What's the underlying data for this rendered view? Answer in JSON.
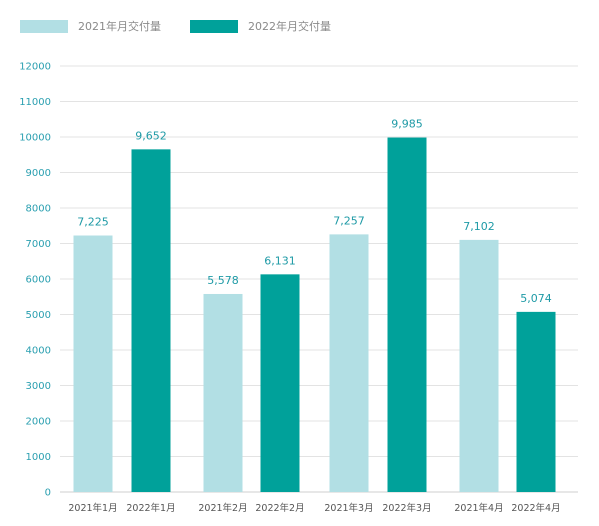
{
  "colors": {
    "series_2021": "#b2dfe4",
    "series_2022": "#00a19a",
    "grid": "#e3e3e3",
    "axis": "#cfcfcf"
  },
  "chart_data": {
    "type": "bar",
    "title": "",
    "xlabel": "",
    "ylabel": "",
    "ylim": [
      0,
      12000
    ],
    "yticks": [
      "0",
      "1000",
      "2000",
      "3000",
      "4000",
      "5000",
      "6000",
      "7000",
      "8000",
      "9000",
      "10000",
      "11000",
      "12000"
    ],
    "grid": true,
    "legend_position": "top-left",
    "categories": [
      "2021年1月",
      "2022年1月",
      "2021年2月",
      "2022年2月",
      "2021年3月",
      "2022年3月",
      "2021年4月",
      "2022年4月"
    ],
    "series": [
      {
        "name": "2021年月交付量",
        "color": "#b2dfe4",
        "values": [
          7225,
          null,
          5578,
          null,
          7257,
          null,
          7102,
          null
        ],
        "labels": [
          "7,225",
          "",
          "5,578",
          "",
          "7,257",
          "",
          "7,102",
          ""
        ]
      },
      {
        "name": "2022年月交付量",
        "color": "#00a19a",
        "values": [
          null,
          9652,
          null,
          6131,
          null,
          9985,
          null,
          5074
        ],
        "labels": [
          "",
          "9,652",
          "",
          "6,131",
          "",
          "9,985",
          "",
          "5,074"
        ]
      }
    ]
  }
}
